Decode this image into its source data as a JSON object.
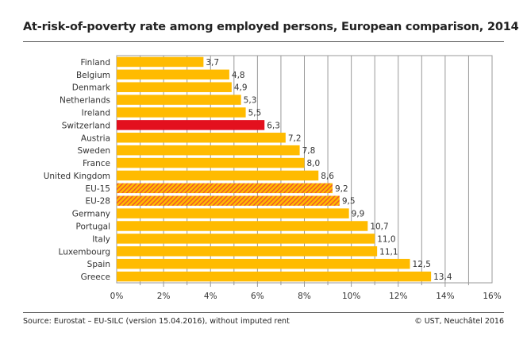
{
  "chart_data": {
    "type": "bar",
    "orientation": "horizontal",
    "title": "At-risk-of-poverty rate among employed persons, European comparison, 2014",
    "categories": [
      "Finland",
      "Belgium",
      "Denmark",
      "Netherlands",
      "Ireland",
      "Switzerland",
      "Austria",
      "Sweden",
      "France",
      "United Kingdom",
      "EU-15",
      "EU-28",
      "Germany",
      "Portugal",
      "Italy",
      "Luxembourg",
      "Spain",
      "Greece"
    ],
    "values": [
      3.7,
      4.8,
      4.9,
      5.3,
      5.5,
      6.3,
      7.2,
      7.8,
      8.0,
      8.6,
      9.2,
      9.5,
      9.9,
      10.7,
      11.0,
      11.1,
      12.5,
      13.4
    ],
    "data_labels": [
      "3,7",
      "4,8",
      "4,9",
      "5,3",
      "5,5",
      "6,3",
      "7,2",
      "7,8",
      "8,0",
      "8,6",
      "9,2",
      "9,5",
      "9,9",
      "10,7",
      "11,0",
      "11,1",
      "12,5",
      "13,4"
    ],
    "highlight": {
      "Switzerland": "#e3101e"
    },
    "hatched": [
      "EU-15",
      "EU-28"
    ],
    "bar_color": "#ffbb00",
    "hatch_color": "#f05a28",
    "xlim": [
      0,
      16
    ],
    "x_ticks": [
      "0%",
      "2%",
      "4%",
      "6%",
      "8%",
      "10%",
      "12%",
      "14%",
      "16%"
    ],
    "grid": true,
    "xlabel": "",
    "ylabel": ""
  },
  "footer": {
    "source": "Source: Eurostat – EU-SILC (version 15.04.2016), without imputed rent",
    "copyright": "© UST, Neuchâtel 2016"
  }
}
